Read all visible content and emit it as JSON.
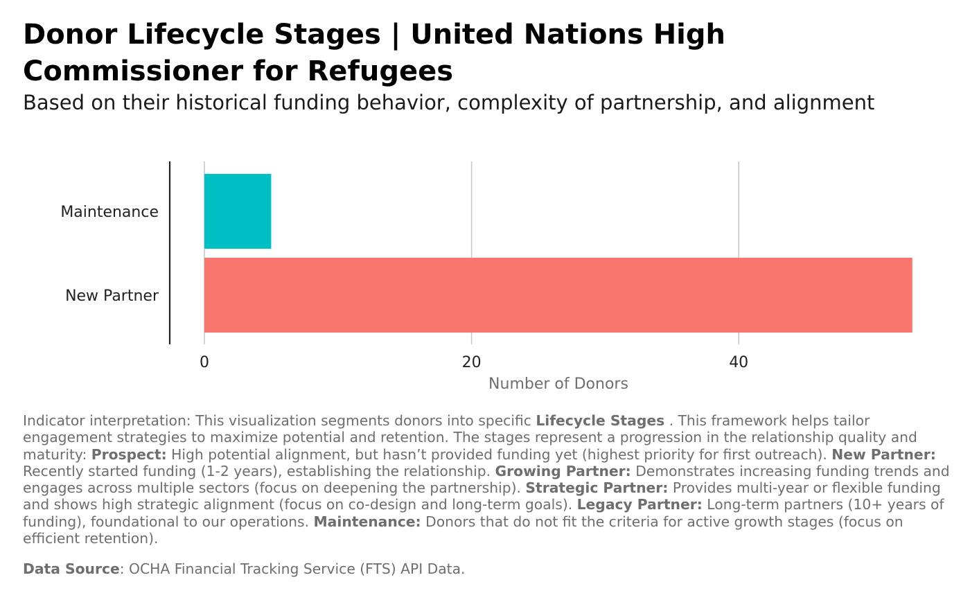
{
  "title": "Donor Lifecycle Stages | United Nations High Commissioner for Refugees",
  "subtitle": "Based on their historical funding behavior, complexity of partnership, and alignment",
  "chart_data": {
    "type": "bar",
    "orientation": "horizontal",
    "categories": [
      "Maintenance",
      "New Partner"
    ],
    "values": [
      5,
      53
    ],
    "colors": [
      "#00BFC4",
      "#F8766D"
    ],
    "xlabel": "Number of Donors",
    "ylabel": "",
    "xlim": [
      0,
      53
    ],
    "xticks": [
      0,
      20,
      40
    ],
    "xtick_labels": [
      "0",
      "20",
      "40"
    ],
    "grid": "vertical major gridlines",
    "legend": "none"
  },
  "caption": {
    "segments": [
      {
        "text": "Indicator interpretation: This visualization segments donors into specific ",
        "bold": false
      },
      {
        "text": "Lifecycle Stages",
        "bold": true
      },
      {
        "text": " . This framework helps tailor engagement strategies to maximize potential and retention. The stages represent a progression in the relationship quality and maturity: ",
        "bold": false
      },
      {
        "text": "Prospect:",
        "bold": true
      },
      {
        "text": " High potential alignment, but hasn’t provided funding yet (highest priority for first outreach). ",
        "bold": false
      },
      {
        "text": "New Partner:",
        "bold": true
      },
      {
        "text": " Recently started funding (1-2 years), establishing the relationship. ",
        "bold": false
      },
      {
        "text": "Growing Partner:",
        "bold": true
      },
      {
        "text": " Demonstrates increasing funding trends and engages across multiple sectors (focus on deepening the partnership). ",
        "bold": false
      },
      {
        "text": "Strategic Partner:",
        "bold": true
      },
      {
        "text": " Provides multi-year or flexible funding and shows high strategic alignment (focus on co-design and long-term goals). ",
        "bold": false
      },
      {
        "text": "Legacy Partner:",
        "bold": true
      },
      {
        "text": " Long-term partners (10+ years of funding), foundational to our operations. ",
        "bold": false
      },
      {
        "text": "Maintenance:",
        "bold": true
      },
      {
        "text": " Donors that do not fit the criteria for active growth stages (focus on efficient retention).",
        "bold": false
      }
    ]
  },
  "source": {
    "label": "Data Source",
    "text": ": OCHA Financial Tracking Service (FTS) API Data."
  }
}
